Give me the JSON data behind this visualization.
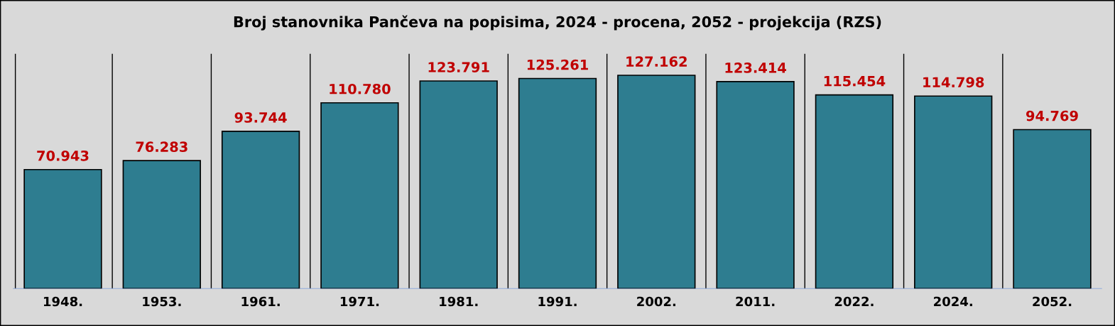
{
  "chart_data": {
    "type": "bar",
    "title": "Broj stanovnika Pančeva na popisima, 2024 - procena, 2052 - projekcija (RZS)",
    "categories": [
      "1948.",
      "1953.",
      "1961.",
      "1971.",
      "1981.",
      "1991.",
      "2002.",
      "2011.",
      "2022.",
      "2024.",
      "2052."
    ],
    "values": [
      70943,
      76283,
      93744,
      110780,
      123791,
      125261,
      127162,
      123414,
      115454,
      114798,
      94769
    ],
    "value_labels": [
      "70.943",
      "76.283",
      "93.744",
      "110.780",
      "123.791",
      "125.261",
      "127.162",
      "123.414",
      "115.454",
      "114.798",
      "94.769"
    ],
    "color": "#2e7d90",
    "ylim": [
      0,
      140000
    ],
    "grid": "x",
    "tick_labels": "x"
  }
}
